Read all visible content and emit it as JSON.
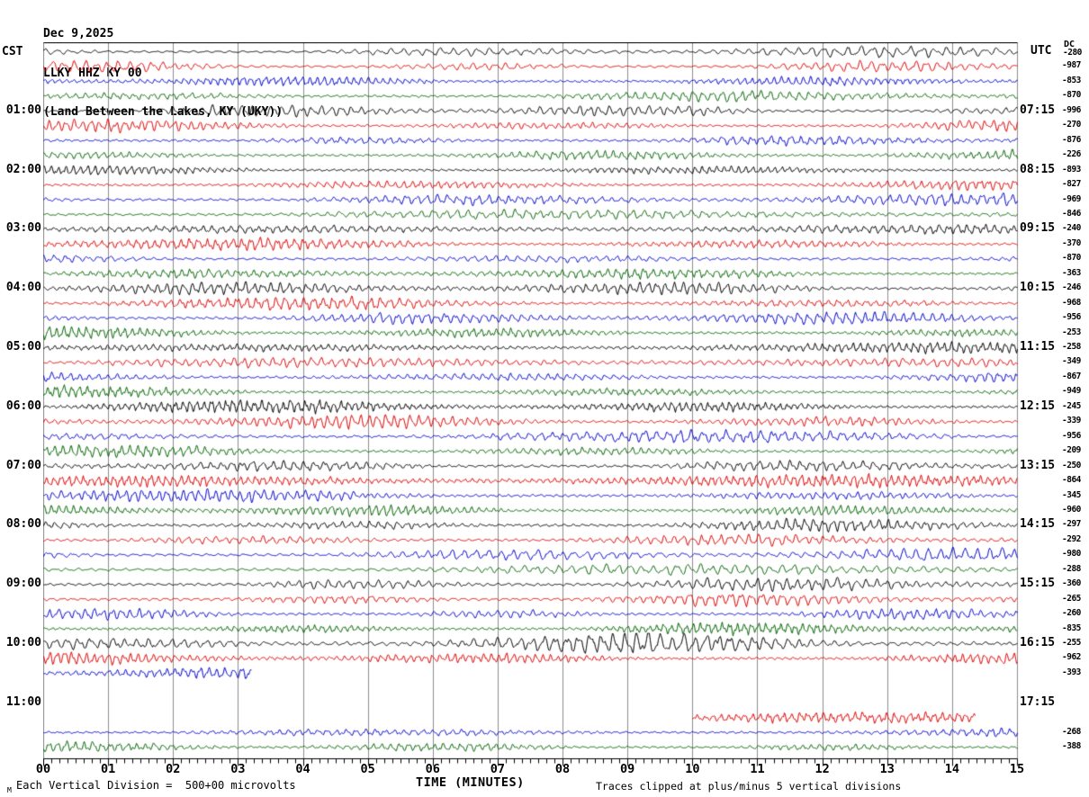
{
  "header": {
    "date": "Dec 9,2025",
    "station": "LLKY HHZ KY 00",
    "location": "(Land Between the Lakes, KY (UKY))",
    "left_tz": "CST",
    "right_tz": "UTC"
  },
  "footer": {
    "corner_mark": "M",
    "scale_note": "Each Vertical Division =  500+00 microvolts",
    "time_axis_label": "TIME (MINUTES)",
    "clip_note": "Traces clipped at plus/minus 5 vertical divisions"
  },
  "chart_data": {
    "type": "seismogram-helicorder",
    "title": "LLKY HHZ KY 00 — Land Between the Lakes, KY (UKY) — Dec 9,2025",
    "x_axis": {
      "label": "TIME (MINUTES)",
      "ticks": [
        "00",
        "01",
        "02",
        "03",
        "04",
        "05",
        "06",
        "07",
        "08",
        "09",
        "10",
        "11",
        "12",
        "13",
        "14",
        "15"
      ],
      "minutes_per_line": 15,
      "minor_ticks_per_minute": 8,
      "grid": "on"
    },
    "left_axis": {
      "header": "CST",
      "labels": [
        {
          "row": 4,
          "text": "01:00"
        },
        {
          "row": 8,
          "text": "02:00"
        },
        {
          "row": 12,
          "text": "03:00"
        },
        {
          "row": 16,
          "text": "04:00"
        },
        {
          "row": 20,
          "text": "05:00"
        },
        {
          "row": 24,
          "text": "06:00"
        },
        {
          "row": 28,
          "text": "07:00"
        },
        {
          "row": 32,
          "text": "08:00"
        },
        {
          "row": 36,
          "text": "09:00"
        },
        {
          "row": 40,
          "text": "10:00"
        },
        {
          "row": 44,
          "text": "11:00"
        }
      ]
    },
    "right_axis": {
      "header": "UTC",
      "labels": [
        {
          "row": 4,
          "text": "07:15"
        },
        {
          "row": 8,
          "text": "08:15"
        },
        {
          "row": 12,
          "text": "09:15"
        },
        {
          "row": 16,
          "text": "10:15"
        },
        {
          "row": 20,
          "text": "11:15"
        },
        {
          "row": 24,
          "text": "12:15"
        },
        {
          "row": 28,
          "text": "13:15"
        },
        {
          "row": 32,
          "text": "14:15"
        },
        {
          "row": 36,
          "text": "15:15"
        },
        {
          "row": 40,
          "text": "16:15"
        },
        {
          "row": 44,
          "text": "17:15"
        }
      ]
    },
    "dc_offsets": {
      "header": "DC",
      "row0": "-280",
      "values": [
        {
          "row": 1,
          "text": "-987"
        },
        {
          "row": 2,
          "text": "-853"
        },
        {
          "row": 3,
          "text": "-870"
        },
        {
          "row": 4,
          "text": "-996"
        },
        {
          "row": 5,
          "text": "-270"
        },
        {
          "row": 6,
          "text": "-876"
        },
        {
          "row": 7,
          "text": "-226"
        },
        {
          "row": 8,
          "text": "-893"
        },
        {
          "row": 9,
          "text": "-827"
        },
        {
          "row": 10,
          "text": "-969"
        },
        {
          "row": 11,
          "text": "-846"
        },
        {
          "row": 12,
          "text": "-240"
        },
        {
          "row": 13,
          "text": "-370"
        },
        {
          "row": 14,
          "text": "-870"
        },
        {
          "row": 15,
          "text": "-363"
        },
        {
          "row": 16,
          "text": "-246"
        },
        {
          "row": 17,
          "text": "-968"
        },
        {
          "row": 18,
          "text": "-956"
        },
        {
          "row": 19,
          "text": "-253"
        },
        {
          "row": 20,
          "text": "-258"
        },
        {
          "row": 21,
          "text": "-349"
        },
        {
          "row": 22,
          "text": "-867"
        },
        {
          "row": 23,
          "text": "-949"
        },
        {
          "row": 24,
          "text": "-245"
        },
        {
          "row": 25,
          "text": "-339"
        },
        {
          "row": 26,
          "text": "-956"
        },
        {
          "row": 27,
          "text": "-209"
        },
        {
          "row": 28,
          "text": "-250"
        },
        {
          "row": 29,
          "text": "-864"
        },
        {
          "row": 30,
          "text": "-345"
        },
        {
          "row": 31,
          "text": "-960"
        },
        {
          "row": 32,
          "text": "-297"
        },
        {
          "row": 33,
          "text": "-292"
        },
        {
          "row": 34,
          "text": "-980"
        },
        {
          "row": 35,
          "text": "-288"
        },
        {
          "row": 36,
          "text": "-360"
        },
        {
          "row": 37,
          "text": "-265"
        },
        {
          "row": 38,
          "text": "-260"
        },
        {
          "row": 39,
          "text": "-835"
        },
        {
          "row": 40,
          "text": "-255"
        },
        {
          "row": 41,
          "text": "-962"
        },
        {
          "row": 42,
          "text": "-393"
        },
        {
          "row": 46,
          "text": "-268"
        },
        {
          "row": 47,
          "text": "-388"
        }
      ]
    },
    "colors": {
      "trace_cycle": [
        "#000000",
        "#dd0000",
        "#0000cc",
        "#006400"
      ],
      "grid": "#8c8c8c",
      "axis": "#000000"
    },
    "rows": [
      {
        "i": 0,
        "segments": [
          [
            0,
            15
          ]
        ],
        "amp": 0.9
      },
      {
        "i": 1,
        "segments": [
          [
            0,
            15
          ]
        ],
        "amp": 1.0
      },
      {
        "i": 2,
        "segments": [
          [
            0,
            15
          ]
        ],
        "amp": 1.0
      },
      {
        "i": 3,
        "segments": [
          [
            0,
            15
          ]
        ],
        "amp": 1.0
      },
      {
        "i": 4,
        "segments": [
          [
            0,
            15
          ]
        ],
        "amp": 1.0
      },
      {
        "i": 5,
        "segments": [
          [
            0,
            15
          ]
        ],
        "amp": 1.0
      },
      {
        "i": 6,
        "segments": [
          [
            0,
            15
          ]
        ],
        "amp": 1.0
      },
      {
        "i": 7,
        "segments": [
          [
            0,
            15
          ]
        ],
        "amp": 1.0
      },
      {
        "i": 8,
        "segments": [
          [
            0,
            15
          ]
        ],
        "amp": 1.0
      },
      {
        "i": 9,
        "segments": [
          [
            0,
            15
          ]
        ],
        "amp": 1.0
      },
      {
        "i": 10,
        "segments": [
          [
            0,
            15
          ]
        ],
        "amp": 1.0
      },
      {
        "i": 11,
        "segments": [
          [
            0,
            15
          ]
        ],
        "amp": 1.0
      },
      {
        "i": 12,
        "segments": [
          [
            0,
            15
          ]
        ],
        "amp": 1.0
      },
      {
        "i": 13,
        "segments": [
          [
            0,
            15
          ]
        ],
        "amp": 1.0
      },
      {
        "i": 14,
        "segments": [
          [
            0,
            15
          ]
        ],
        "amp": 1.0
      },
      {
        "i": 15,
        "segments": [
          [
            0,
            15
          ]
        ],
        "amp": 1.0
      },
      {
        "i": 16,
        "segments": [
          [
            0,
            15
          ]
        ],
        "amp": 1.05
      },
      {
        "i": 17,
        "segments": [
          [
            0,
            15
          ]
        ],
        "amp": 1.05
      },
      {
        "i": 18,
        "segments": [
          [
            0,
            15
          ]
        ],
        "amp": 1.05
      },
      {
        "i": 19,
        "segments": [
          [
            0,
            15
          ]
        ],
        "amp": 1.05
      },
      {
        "i": 20,
        "segments": [
          [
            0,
            15
          ]
        ],
        "amp": 1.1
      },
      {
        "i": 21,
        "segments": [
          [
            0,
            15
          ]
        ],
        "amp": 1.05
      },
      {
        "i": 22,
        "segments": [
          [
            0,
            15
          ]
        ],
        "amp": 1.05
      },
      {
        "i": 23,
        "segments": [
          [
            0,
            15
          ]
        ],
        "amp": 1.05
      },
      {
        "i": 24,
        "segments": [
          [
            0,
            15
          ]
        ],
        "amp": 1.1
      },
      {
        "i": 25,
        "segments": [
          [
            0,
            15
          ]
        ],
        "amp": 1.1
      },
      {
        "i": 26,
        "segments": [
          [
            0,
            15
          ]
        ],
        "amp": 1.05
      },
      {
        "i": 27,
        "segments": [
          [
            0,
            15
          ]
        ],
        "amp": 1.1
      },
      {
        "i": 28,
        "segments": [
          [
            0,
            15
          ]
        ],
        "amp": 1.1
      },
      {
        "i": 29,
        "segments": [
          [
            0,
            15
          ]
        ],
        "amp": 1.1
      },
      {
        "i": 30,
        "segments": [
          [
            0,
            15
          ]
        ],
        "amp": 1.1
      },
      {
        "i": 31,
        "segments": [
          [
            0,
            15
          ]
        ],
        "amp": 1.1
      },
      {
        "i": 32,
        "segments": [
          [
            0,
            15
          ]
        ],
        "amp": 1.1
      },
      {
        "i": 33,
        "segments": [
          [
            0,
            15
          ]
        ],
        "amp": 1.1
      },
      {
        "i": 34,
        "segments": [
          [
            0,
            15
          ]
        ],
        "amp": 1.1
      },
      {
        "i": 35,
        "segments": [
          [
            0,
            15
          ]
        ],
        "amp": 1.1
      },
      {
        "i": 36,
        "segments": [
          [
            0,
            15
          ]
        ],
        "amp": 1.15
      },
      {
        "i": 37,
        "segments": [
          [
            0,
            15
          ]
        ],
        "amp": 1.1
      },
      {
        "i": 38,
        "segments": [
          [
            0,
            15
          ]
        ],
        "amp": 1.1
      },
      {
        "i": 39,
        "segments": [
          [
            0,
            15
          ]
        ],
        "amp": 1.1
      },
      {
        "i": 40,
        "segments": [
          [
            0,
            15
          ]
        ],
        "amp": 1.6
      },
      {
        "i": 41,
        "segments": [
          [
            0,
            15
          ]
        ],
        "amp": 1.15
      },
      {
        "i": 42,
        "segments": [
          [
            0,
            3.2
          ]
        ],
        "amp": 1.0
      },
      {
        "i": 43,
        "segments": [],
        "amp": 0
      },
      {
        "i": 44,
        "segments": [],
        "amp": 0
      },
      {
        "i": 45,
        "segments": [
          [
            10.0,
            14.35
          ]
        ],
        "amp": 1.0
      },
      {
        "i": 46,
        "segments": [
          [
            0,
            15
          ]
        ],
        "amp": 0.85
      },
      {
        "i": 47,
        "segments": [
          [
            0,
            15
          ]
        ],
        "amp": 0.9
      }
    ]
  }
}
